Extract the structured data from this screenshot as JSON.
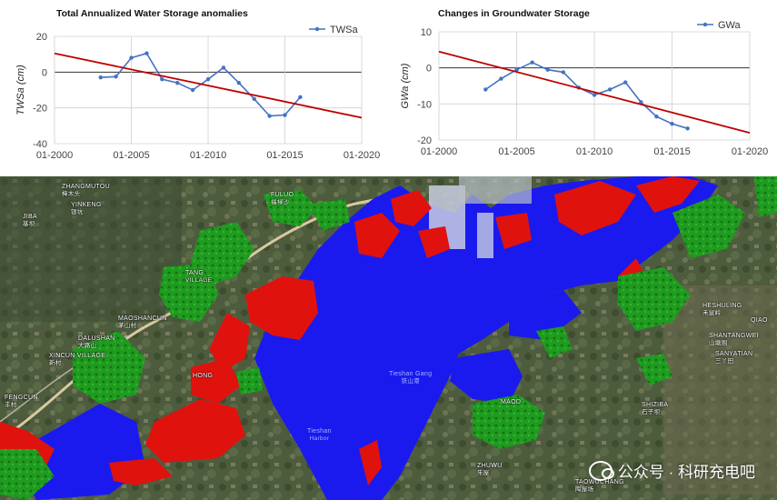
{
  "chart_data": [
    {
      "type": "line",
      "title": "Total Annualized Water Storage anomalies",
      "ylabel": "TWSa (cm)",
      "xlabel": "",
      "ylim": [
        -40,
        20
      ],
      "yticks": [
        -40,
        -20,
        0,
        20
      ],
      "xlim": [
        "2000-01-01",
        "2020-01-01"
      ],
      "xticks": [
        "01-2000",
        "01-2005",
        "01-2010",
        "01-2015",
        "01-2020"
      ],
      "legend_position": "top-right",
      "grid": true,
      "series": [
        {
          "name": "TWSa",
          "color": "#4472c4",
          "marker": "circle",
          "x": [
            "2003-01-01",
            "2004-01-01",
            "2005-01-01",
            "2006-01-01",
            "2007-01-01",
            "2008-01-01",
            "2009-01-01",
            "2010-01-01",
            "2011-01-01",
            "2012-01-01",
            "2013-01-01",
            "2014-01-01",
            "2015-01-01",
            "2016-01-01"
          ],
          "y": [
            -3,
            -2.5,
            8,
            10.5,
            -4,
            -6,
            -10,
            -4,
            2.5,
            -6,
            -15,
            -24.5,
            -24,
            -14
          ]
        },
        {
          "name": "",
          "color": "#c00000",
          "marker": "none",
          "x": [
            "2000-01-01",
            "2020-01-01"
          ],
          "y": [
            10.5,
            -25.5
          ]
        }
      ],
      "zero_line": true
    },
    {
      "type": "line",
      "title": "Changes in Groundwater Storage",
      "ylabel": "GWa (cm)",
      "xlabel": "",
      "ylim": [
        -20,
        10
      ],
      "yticks": [
        -20,
        -10,
        0,
        10
      ],
      "xlim": [
        "2000-01-01",
        "2020-01-01"
      ],
      "xticks": [
        "01-2000",
        "01-2005",
        "01-2010",
        "01-2015",
        "01-2020"
      ],
      "legend_position": "top-right",
      "grid": true,
      "series": [
        {
          "name": "GWa",
          "color": "#4472c4",
          "marker": "circle",
          "x": [
            "2003-01-01",
            "2004-01-01",
            "2005-01-01",
            "2006-01-01",
            "2007-01-01",
            "2008-01-01",
            "2009-01-01",
            "2010-01-01",
            "2011-01-01",
            "2012-01-01",
            "2013-01-01",
            "2014-01-01",
            "2015-01-01",
            "2016-01-01"
          ],
          "y": [
            -6,
            -3,
            -0.5,
            1.5,
            -0.5,
            -1.2,
            -5.5,
            -7.5,
            -6,
            -4,
            -9.5,
            -13.5,
            -15.5,
            -16.8
          ]
        },
        {
          "name": "",
          "color": "#c00000",
          "marker": "none",
          "x": [
            "2000-01-01",
            "2020-01-01"
          ],
          "y": [
            4.5,
            -18
          ]
        }
      ],
      "zero_line": true
    }
  ],
  "map": {
    "colors": {
      "water": "#1a1aee",
      "red_class": "#e0120e",
      "green_class": "#1f9b1f",
      "land": "#4a5a3a"
    },
    "place_labels": [
      {
        "en": "ZHANGMUTOU",
        "zh": "樟木头"
      },
      {
        "en": "YINKENG",
        "zh": "银坑"
      },
      {
        "en": "JIBA",
        "zh": "基坝"
      },
      {
        "en": "FULUO",
        "zh": "福禄沙"
      },
      {
        "en": "TANG",
        "zh": ""
      },
      {
        "en": "VILLAGE",
        "zh": ""
      },
      {
        "en": "MAOSHANCUN",
        "zh": "茅山村"
      },
      {
        "en": "DALUSHAN",
        "zh": "大路山"
      },
      {
        "en": "XINCUN VILLAGE",
        "zh": "新村"
      },
      {
        "en": "HONG",
        "zh": ""
      },
      {
        "en": "FENGCUN",
        "zh": "丰村"
      },
      {
        "en": "HESHULING",
        "zh": "禾鼠岭"
      },
      {
        "en": "QIAO",
        "zh": ""
      },
      {
        "en": "SHANTANGWEI",
        "zh": "山塘围"
      },
      {
        "en": "SANYATIAN",
        "zh": "三丫田"
      },
      {
        "en": "MAOD",
        "zh": ""
      },
      {
        "en": "SHIZIBA",
        "zh": "石子坝"
      },
      {
        "en": "ZHUWU",
        "zh": "朱屋"
      },
      {
        "en": "TAOWUCHANG",
        "zh": "陶屋场"
      }
    ],
    "water_labels": [
      {
        "en": "Tieshan Gang",
        "zh": "铁山港"
      },
      {
        "en": "Tieshan",
        "zh": "Harbor"
      }
    ],
    "watermark": "公众号 · 科研充电吧"
  }
}
